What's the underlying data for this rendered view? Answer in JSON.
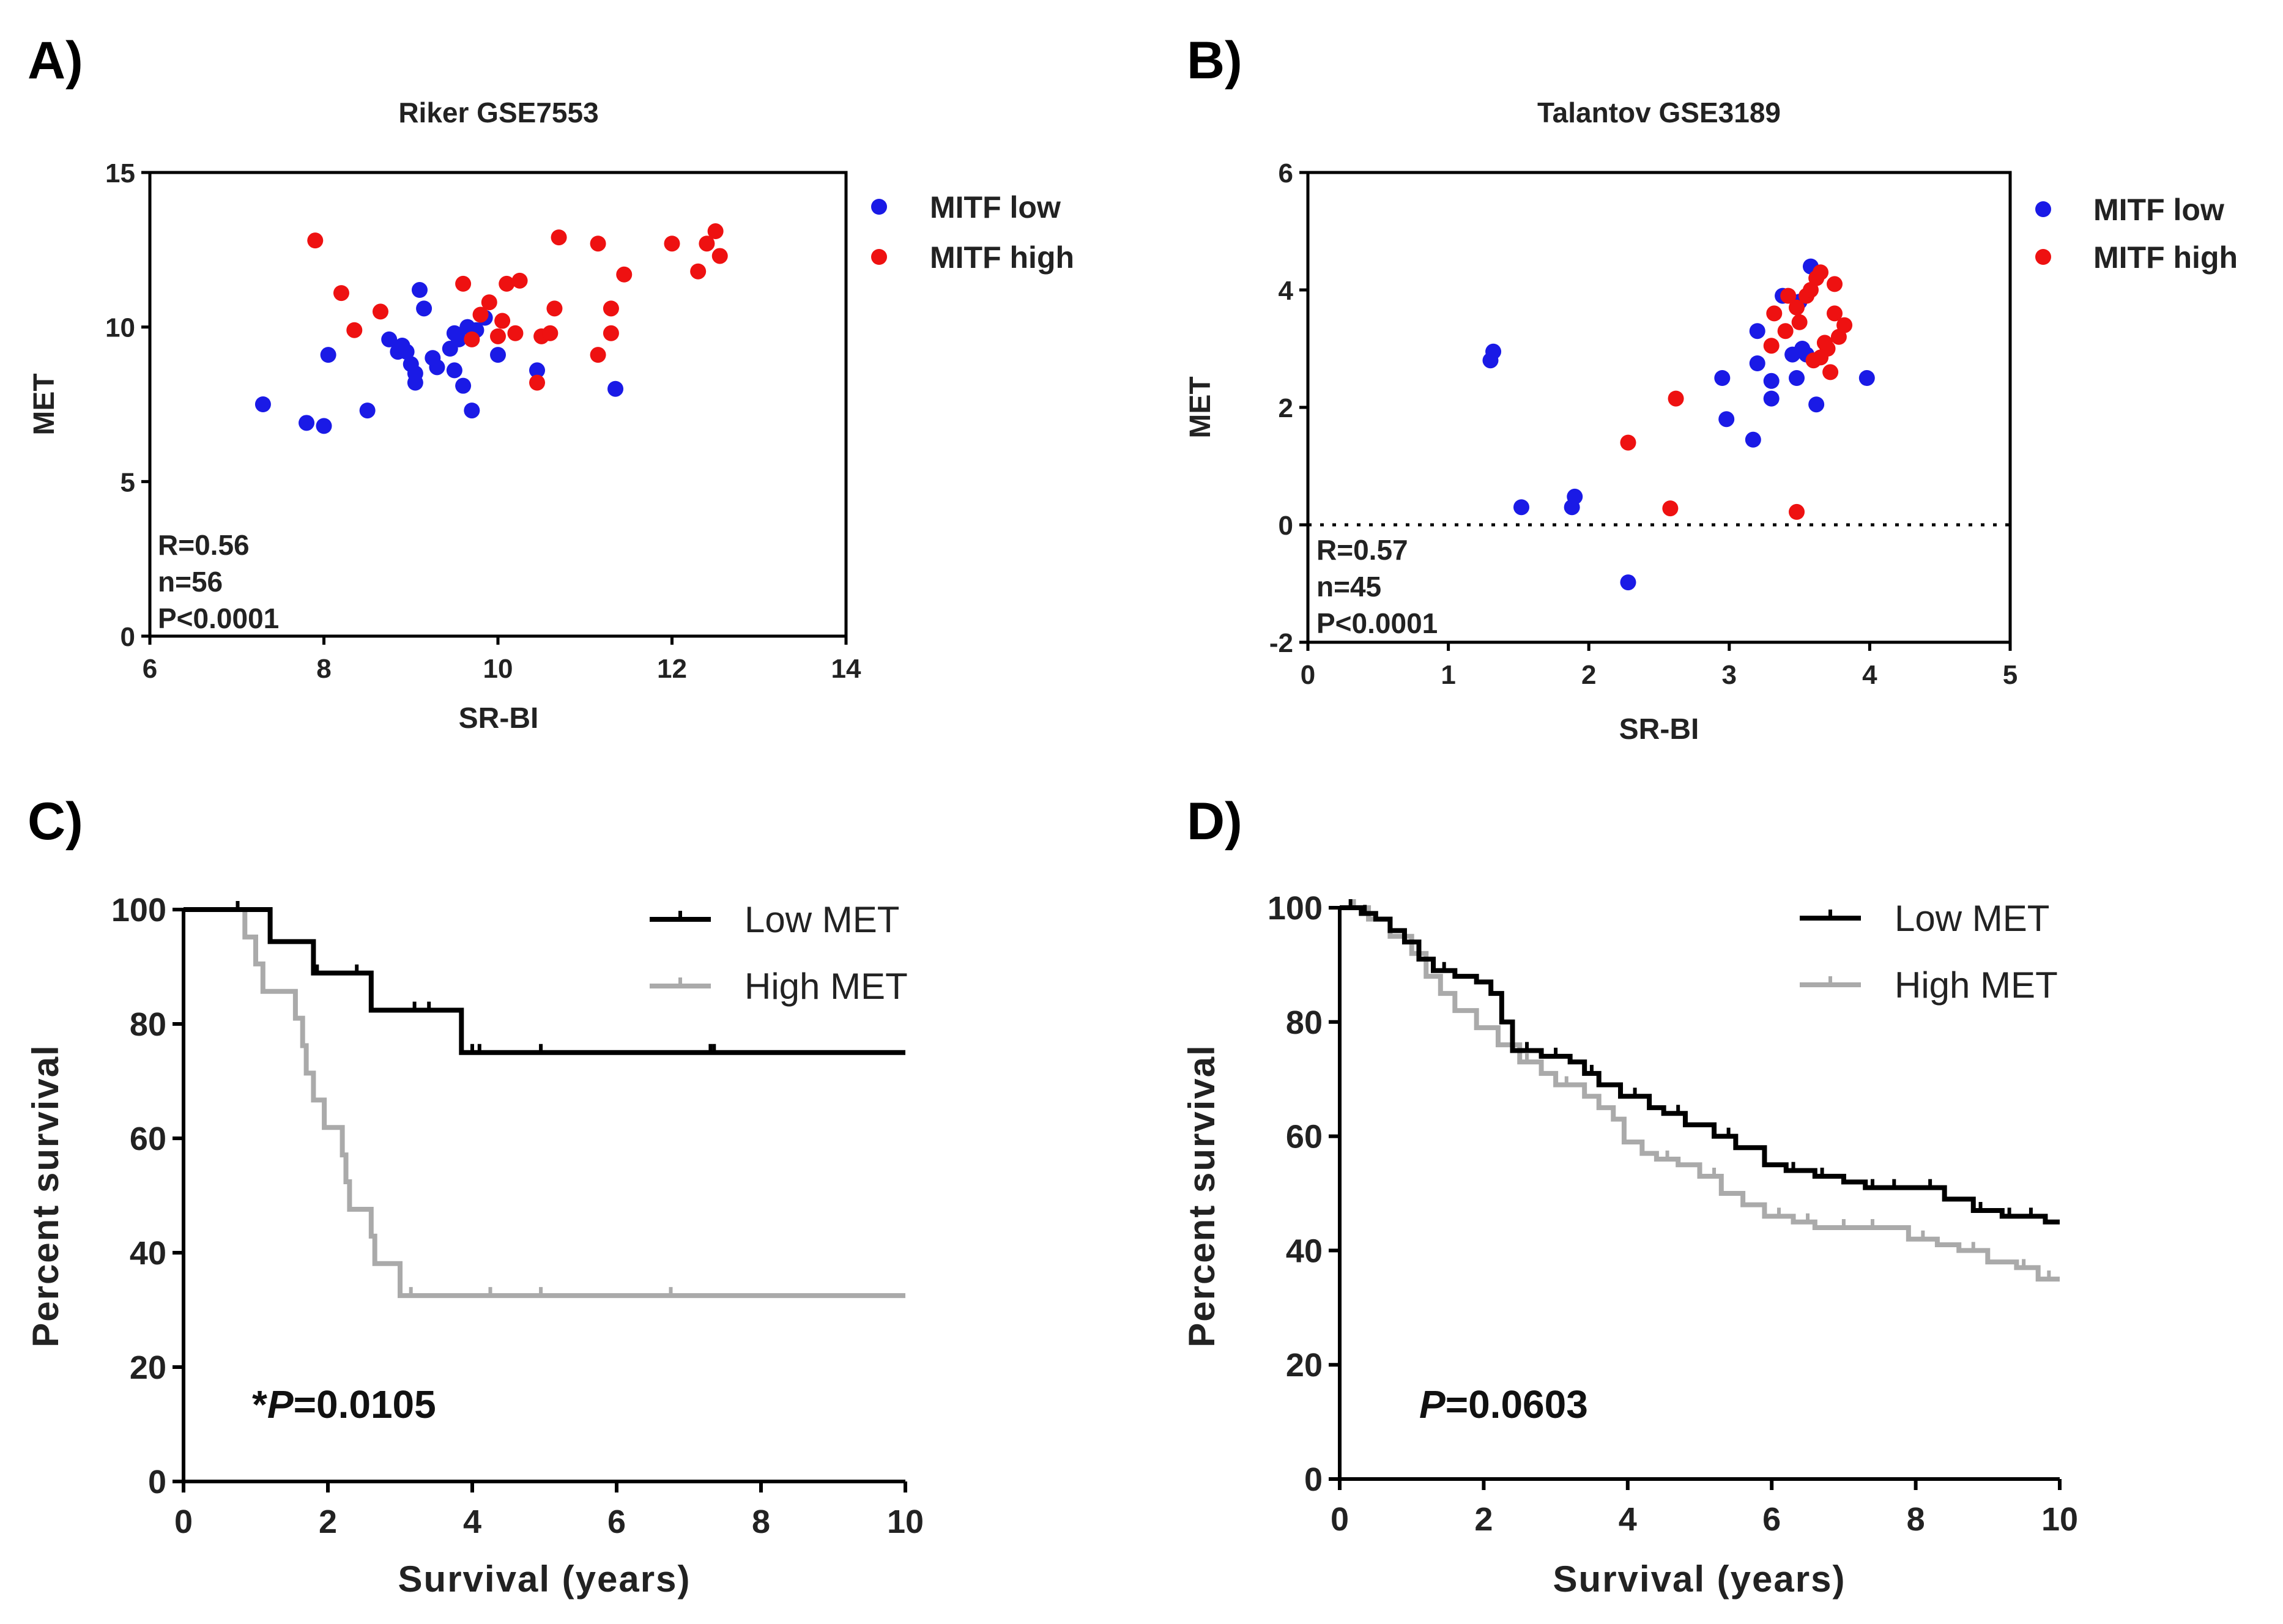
{
  "panel_labels": [
    "A)",
    "B)",
    "C)",
    "D)"
  ],
  "colors": {
    "mitf_low": "#1a1ae6",
    "mitf_high": "#ee1111",
    "low_met": "#000000",
    "high_met": "#aaaaaa",
    "axis": "#000000"
  },
  "chart_data": [
    {
      "type": "scatter",
      "title": "Riker GSE7553",
      "xlabel": "SR-BI",
      "ylabel": "MET",
      "xlim": [
        6,
        14
      ],
      "ylim": [
        0,
        15
      ],
      "xticks": [
        6,
        8,
        10,
        12,
        14
      ],
      "yticks": [
        0,
        5,
        10,
        15
      ],
      "stats": [
        "R=0.56",
        "n=56",
        "P<0.0001"
      ],
      "series": [
        {
          "name": "MITF low",
          "points": [
            [
              7.3,
              7.5
            ],
            [
              7.8,
              6.9
            ],
            [
              8.0,
              6.8
            ],
            [
              8.05,
              9.1
            ],
            [
              8.5,
              7.3
            ],
            [
              8.75,
              9.6
            ],
            [
              8.85,
              9.2
            ],
            [
              8.9,
              9.4
            ],
            [
              8.95,
              9.2
            ],
            [
              9.0,
              8.8
            ],
            [
              9.05,
              8.2
            ],
            [
              9.1,
              11.2
            ],
            [
              9.15,
              10.6
            ],
            [
              9.25,
              9.0
            ],
            [
              9.3,
              8.7
            ],
            [
              9.45,
              9.3
            ],
            [
              9.5,
              8.6
            ],
            [
              9.55,
              9.6
            ],
            [
              9.6,
              8.1
            ],
            [
              9.65,
              10.0
            ],
            [
              9.7,
              7.3
            ],
            [
              9.85,
              10.3
            ],
            [
              10.0,
              9.1
            ],
            [
              10.45,
              8.6
            ],
            [
              11.35,
              8.0
            ],
            [
              9.05,
              8.5
            ],
            [
              9.5,
              9.8
            ],
            [
              9.75,
              9.9
            ]
          ]
        },
        {
          "name": "MITF high",
          "points": [
            [
              7.9,
              12.8
            ],
            [
              8.2,
              11.1
            ],
            [
              8.35,
              9.9
            ],
            [
              8.65,
              10.5
            ],
            [
              9.6,
              11.4
            ],
            [
              9.8,
              10.4
            ],
            [
              9.9,
              10.8
            ],
            [
              10.0,
              9.7
            ],
            [
              10.05,
              10.2
            ],
            [
              10.1,
              11.4
            ],
            [
              10.25,
              11.5
            ],
            [
              10.5,
              9.7
            ],
            [
              10.6,
              9.8
            ],
            [
              10.65,
              10.6
            ],
            [
              10.7,
              12.9
            ],
            [
              10.45,
              8.2
            ],
            [
              11.15,
              12.7
            ],
            [
              11.15,
              9.1
            ],
            [
              11.3,
              9.8
            ],
            [
              11.3,
              10.6
            ],
            [
              11.45,
              11.7
            ],
            [
              12.0,
              12.7
            ],
            [
              12.3,
              11.8
            ],
            [
              12.4,
              12.7
            ],
            [
              12.5,
              13.1
            ],
            [
              12.55,
              12.3
            ],
            [
              10.2,
              9.8
            ],
            [
              9.7,
              9.6
            ]
          ]
        }
      ]
    },
    {
      "type": "scatter",
      "title": "Talantov GSE3189",
      "xlabel": "SR-BI",
      "ylabel": "MET",
      "xlim": [
        0,
        5
      ],
      "ylim": [
        -2,
        6
      ],
      "xticks": [
        0,
        1,
        2,
        3,
        4,
        5
      ],
      "yticks": [
        -2,
        0,
        2,
        4,
        6
      ],
      "reference_line": 0,
      "stats": [
        "R=0.57",
        "n=45",
        "P<0.0001"
      ],
      "series": [
        {
          "name": "MITF low",
          "points": [
            [
              1.3,
              2.8
            ],
            [
              1.32,
              2.95
            ],
            [
              1.52,
              0.3
            ],
            [
              1.88,
              0.3
            ],
            [
              1.9,
              0.48
            ],
            [
              2.28,
              -0.98
            ],
            [
              2.95,
              2.5
            ],
            [
              2.98,
              1.8
            ],
            [
              3.17,
              1.45
            ],
            [
              3.2,
              2.75
            ],
            [
              3.2,
              3.3
            ],
            [
              3.3,
              2.45
            ],
            [
              3.3,
              2.15
            ],
            [
              3.38,
              3.9
            ],
            [
              3.45,
              2.9
            ],
            [
              3.48,
              2.5
            ],
            [
              3.5,
              3.8
            ],
            [
              3.52,
              3.0
            ],
            [
              3.58,
              4.4
            ],
            [
              3.62,
              2.05
            ],
            [
              3.98,
              2.5
            ],
            [
              3.55,
              2.9
            ]
          ]
        },
        {
          "name": "MITF high",
          "points": [
            [
              2.28,
              1.4
            ],
            [
              2.58,
              0.28
            ],
            [
              2.62,
              2.15
            ],
            [
              3.3,
              3.05
            ],
            [
              3.32,
              3.6
            ],
            [
              3.4,
              3.3
            ],
            [
              3.48,
              3.7
            ],
            [
              3.5,
              3.45
            ],
            [
              3.55,
              3.9
            ],
            [
              3.58,
              4.0
            ],
            [
              3.6,
              2.8
            ],
            [
              3.62,
              4.2
            ],
            [
              3.65,
              4.3
            ],
            [
              3.68,
              3.1
            ],
            [
              3.7,
              3.0
            ],
            [
              3.72,
              2.6
            ],
            [
              3.75,
              4.1
            ],
            [
              3.75,
              3.6
            ],
            [
              3.78,
              3.2
            ],
            [
              3.82,
              3.4
            ],
            [
              3.65,
              2.85
            ],
            [
              3.48,
              0.22
            ],
            [
              3.42,
              3.9
            ]
          ]
        }
      ]
    },
    {
      "type": "line",
      "subtype": "kaplan-meier",
      "xlabel": "Survival (years)",
      "ylabel": "Percent survival",
      "xlim": [
        0,
        10
      ],
      "ylim": [
        0,
        100
      ],
      "xticks": [
        0,
        2,
        4,
        6,
        8,
        10
      ],
      "yticks": [
        0,
        20,
        40,
        60,
        80,
        100
      ],
      "pvalue_prefix": "*",
      "pvalue_label": "P",
      "pvalue_text": "=0.0105",
      "series": [
        {
          "name": "Low MET",
          "steps": [
            [
              0,
              100
            ],
            [
              1.2,
              94.4
            ],
            [
              1.8,
              88.9
            ],
            [
              2.6,
              82.4
            ],
            [
              3.85,
              75
            ],
            [
              10,
              75
            ]
          ],
          "censors": [
            [
              0.75,
              100
            ],
            [
              1.85,
              88.9
            ],
            [
              2.4,
              88.9
            ],
            [
              3.2,
              82.4
            ],
            [
              3.4,
              82.4
            ],
            [
              4.0,
              75
            ],
            [
              4.1,
              75
            ],
            [
              4.95,
              75
            ],
            [
              7.3,
              75
            ],
            [
              7.35,
              75
            ]
          ]
        },
        {
          "name": "High MET",
          "steps": [
            [
              0,
              100
            ],
            [
              0.85,
              95.2
            ],
            [
              1.0,
              90.5
            ],
            [
              1.1,
              85.7
            ],
            [
              1.55,
              81
            ],
            [
              1.65,
              76.2
            ],
            [
              1.7,
              71.4
            ],
            [
              1.8,
              66.7
            ],
            [
              1.95,
              61.9
            ],
            [
              2.2,
              57.1
            ],
            [
              2.25,
              52.4
            ],
            [
              2.3,
              47.6
            ],
            [
              2.6,
              42.9
            ],
            [
              2.65,
              38.1
            ],
            [
              3.0,
              32.5
            ],
            [
              10,
              32.5
            ]
          ],
          "censors": [
            [
              3.15,
              32.5
            ],
            [
              4.25,
              32.5
            ],
            [
              4.95,
              32.5
            ],
            [
              6.75,
              32.5
            ]
          ]
        }
      ]
    },
    {
      "type": "line",
      "subtype": "kaplan-meier",
      "xlabel": "Survival (years)",
      "ylabel": "Percent survival",
      "xlim": [
        0,
        10
      ],
      "ylim": [
        0,
        100
      ],
      "xticks": [
        0,
        2,
        4,
        6,
        8,
        10
      ],
      "yticks": [
        0,
        20,
        40,
        60,
        80,
        100
      ],
      "pvalue_prefix": "",
      "pvalue_label": "P",
      "pvalue_text": "=0.0603",
      "series": [
        {
          "name": "Low MET",
          "steps": [
            [
              0,
              100
            ],
            [
              0.3,
              99
            ],
            [
              0.5,
              98
            ],
            [
              0.7,
              96
            ],
            [
              0.9,
              94
            ],
            [
              1.1,
              91
            ],
            [
              1.3,
              89
            ],
            [
              1.6,
              88
            ],
            [
              1.9,
              87
            ],
            [
              2.1,
              85
            ],
            [
              2.25,
              80
            ],
            [
              2.4,
              75
            ],
            [
              2.8,
              74
            ],
            [
              3.2,
              73
            ],
            [
              3.4,
              71
            ],
            [
              3.6,
              69
            ],
            [
              3.9,
              67
            ],
            [
              4.3,
              65
            ],
            [
              4.5,
              64
            ],
            [
              4.8,
              62
            ],
            [
              5.2,
              60
            ],
            [
              5.5,
              58
            ],
            [
              5.9,
              55
            ],
            [
              6.2,
              54
            ],
            [
              6.6,
              53
            ],
            [
              7.0,
              52
            ],
            [
              7.3,
              51
            ],
            [
              7.9,
              51
            ],
            [
              8.4,
              49
            ],
            [
              8.8,
              47
            ],
            [
              9.2,
              46
            ],
            [
              9.8,
              45
            ],
            [
              10,
              45
            ]
          ],
          "censors": [
            [
              0.15,
              100
            ],
            [
              0.35,
              99
            ],
            [
              1.45,
              89
            ],
            [
              2.6,
              75
            ],
            [
              3.0,
              74
            ],
            [
              3.5,
              71
            ],
            [
              4.1,
              67
            ],
            [
              4.7,
              64
            ],
            [
              5.4,
              60
            ],
            [
              6.3,
              54
            ],
            [
              6.7,
              53
            ],
            [
              7.4,
              51
            ],
            [
              7.7,
              51
            ],
            [
              8.2,
              51
            ],
            [
              8.9,
              47
            ],
            [
              9.3,
              46
            ],
            [
              9.6,
              46
            ]
          ]
        },
        {
          "name": "High MET",
          "steps": [
            [
              0,
              100
            ],
            [
              0.4,
              98
            ],
            [
              0.7,
              95
            ],
            [
              1.0,
              92
            ],
            [
              1.2,
              88
            ],
            [
              1.4,
              85
            ],
            [
              1.6,
              82
            ],
            [
              1.9,
              79
            ],
            [
              2.2,
              76
            ],
            [
              2.5,
              73
            ],
            [
              2.8,
              71
            ],
            [
              3.0,
              69
            ],
            [
              3.4,
              67
            ],
            [
              3.6,
              65
            ],
            [
              3.8,
              63
            ],
            [
              3.95,
              59
            ],
            [
              4.2,
              57
            ],
            [
              4.4,
              56
            ],
            [
              4.7,
              55
            ],
            [
              5.0,
              53
            ],
            [
              5.3,
              50
            ],
            [
              5.6,
              48
            ],
            [
              5.9,
              46
            ],
            [
              6.3,
              45
            ],
            [
              6.6,
              44
            ],
            [
              7.6,
              44
            ],
            [
              7.9,
              42
            ],
            [
              8.3,
              41
            ],
            [
              8.6,
              40
            ],
            [
              9.0,
              38
            ],
            [
              9.4,
              37
            ],
            [
              9.7,
              35
            ],
            [
              10,
              35
            ]
          ],
          "censors": [
            [
              0.2,
              100
            ],
            [
              2.6,
              73
            ],
            [
              3.15,
              69
            ],
            [
              4.55,
              56
            ],
            [
              5.2,
              53
            ],
            [
              6.1,
              46
            ],
            [
              6.5,
              45
            ],
            [
              7.0,
              44
            ],
            [
              7.4,
              44
            ],
            [
              8.1,
              42
            ],
            [
              8.8,
              40
            ],
            [
              9.5,
              37
            ],
            [
              9.85,
              35
            ]
          ]
        }
      ]
    }
  ]
}
